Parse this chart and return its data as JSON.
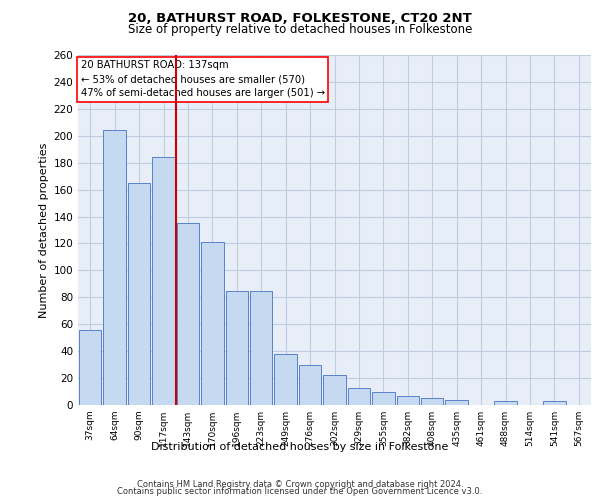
{
  "title1": "20, BATHURST ROAD, FOLKESTONE, CT20 2NT",
  "title2": "Size of property relative to detached houses in Folkestone",
  "xlabel": "Distribution of detached houses by size in Folkestone",
  "ylabel": "Number of detached properties",
  "footer1": "Contains HM Land Registry data © Crown copyright and database right 2024.",
  "footer2": "Contains public sector information licensed under the Open Government Licence v3.0.",
  "annotation_line1": "20 BATHURST ROAD: 137sqm",
  "annotation_line2": "← 53% of detached houses are smaller (570)",
  "annotation_line3": "47% of semi-detached houses are larger (501) →",
  "bar_color": "#c5d9f0",
  "bar_edge_color": "#4472c4",
  "vline_color": "#cc0000",
  "vline_index": 3.5,
  "categories": [
    "37sqm",
    "64sqm",
    "90sqm",
    "117sqm",
    "143sqm",
    "170sqm",
    "196sqm",
    "223sqm",
    "249sqm",
    "276sqm",
    "302sqm",
    "329sqm",
    "355sqm",
    "382sqm",
    "408sqm",
    "435sqm",
    "461sqm",
    "488sqm",
    "514sqm",
    "541sqm",
    "567sqm"
  ],
  "bar_values": [
    56,
    204,
    165,
    184,
    135,
    121,
    85,
    85,
    38,
    30,
    22,
    13,
    10,
    7,
    5,
    4,
    0,
    3,
    0,
    3,
    0
  ],
  "ylim": [
    0,
    260
  ],
  "yticks": [
    0,
    20,
    40,
    60,
    80,
    100,
    120,
    140,
    160,
    180,
    200,
    220,
    240,
    260
  ],
  "plot_bg_color": "#e8eef8",
  "grid_color": "#c0cce0",
  "fig_bg_color": "#ffffff"
}
